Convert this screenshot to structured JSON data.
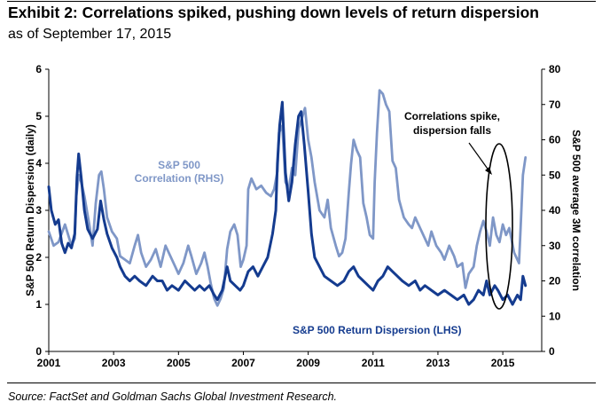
{
  "header": {
    "title": "Exhibit 2: Correlations spiked, pushing down levels of return dispersion",
    "subtitle": "as of September 17, 2015"
  },
  "footer": {
    "source": "Source: FactSet and Goldman Sachs Global Investment Research."
  },
  "chart_data": {
    "type": "line",
    "x_ticks": [
      "2001",
      "2003",
      "2005",
      "2007",
      "2009",
      "2011",
      "2013",
      "2015"
    ],
    "xlim": [
      2001,
      2016.2
    ],
    "y_left": {
      "label": "S&P 500 Return Dispersion (daily)",
      "ticks": [
        0,
        1,
        2,
        3,
        4,
        5,
        6
      ],
      "lim": [
        0,
        6
      ]
    },
    "y_right": {
      "label": "S&P 500 average 3M correlation",
      "ticks": [
        0,
        10,
        20,
        30,
        40,
        50,
        60,
        70,
        80
      ],
      "lim": [
        0,
        80
      ]
    },
    "grid": false,
    "series": [
      {
        "name": "S&P 500 Correlation (RHS)",
        "axis": "right",
        "color": "#7f97c7",
        "points": [
          [
            2001.0,
            34
          ],
          [
            2001.15,
            30
          ],
          [
            2001.3,
            31
          ],
          [
            2001.5,
            36
          ],
          [
            2001.7,
            30
          ],
          [
            2001.8,
            32
          ],
          [
            2001.85,
            44
          ],
          [
            2001.92,
            50
          ],
          [
            2002.0,
            48
          ],
          [
            2002.1,
            44
          ],
          [
            2002.25,
            36
          ],
          [
            2002.35,
            30
          ],
          [
            2002.45,
            42
          ],
          [
            2002.55,
            50
          ],
          [
            2002.62,
            51
          ],
          [
            2002.7,
            46
          ],
          [
            2002.8,
            38
          ],
          [
            2002.95,
            34
          ],
          [
            2003.1,
            32
          ],
          [
            2003.2,
            27
          ],
          [
            2003.35,
            26
          ],
          [
            2003.5,
            25
          ],
          [
            2003.65,
            30
          ],
          [
            2003.75,
            33
          ],
          [
            2003.85,
            28
          ],
          [
            2004.0,
            24
          ],
          [
            2004.15,
            26
          ],
          [
            2004.3,
            29
          ],
          [
            2004.45,
            24
          ],
          [
            2004.6,
            30
          ],
          [
            2004.75,
            27
          ],
          [
            2004.9,
            24
          ],
          [
            2005.0,
            22
          ],
          [
            2005.15,
            25
          ],
          [
            2005.3,
            30
          ],
          [
            2005.4,
            27
          ],
          [
            2005.55,
            22
          ],
          [
            2005.7,
            25
          ],
          [
            2005.8,
            28
          ],
          [
            2005.9,
            24
          ],
          [
            2006.0,
            19
          ],
          [
            2006.1,
            15
          ],
          [
            2006.2,
            13
          ],
          [
            2006.3,
            15
          ],
          [
            2006.4,
            18
          ],
          [
            2006.5,
            29
          ],
          [
            2006.6,
            34
          ],
          [
            2006.72,
            36
          ],
          [
            2006.82,
            33
          ],
          [
            2006.92,
            24
          ],
          [
            2007.0,
            26
          ],
          [
            2007.1,
            30
          ],
          [
            2007.15,
            46
          ],
          [
            2007.25,
            49
          ],
          [
            2007.4,
            46
          ],
          [
            2007.55,
            47
          ],
          [
            2007.7,
            45
          ],
          [
            2007.85,
            44
          ],
          [
            2007.95,
            46
          ],
          [
            2008.05,
            51
          ],
          [
            2008.1,
            62
          ],
          [
            2008.2,
            64
          ],
          [
            2008.3,
            48
          ],
          [
            2008.4,
            46
          ],
          [
            2008.5,
            52
          ],
          [
            2008.6,
            50
          ],
          [
            2008.7,
            63
          ],
          [
            2008.8,
            66
          ],
          [
            2008.9,
            69
          ],
          [
            2009.0,
            60
          ],
          [
            2009.1,
            55
          ],
          [
            2009.2,
            48
          ],
          [
            2009.35,
            40
          ],
          [
            2009.5,
            38
          ],
          [
            2009.6,
            43
          ],
          [
            2009.7,
            35
          ],
          [
            2009.85,
            30
          ],
          [
            2009.95,
            27
          ],
          [
            2010.05,
            28
          ],
          [
            2010.15,
            32
          ],
          [
            2010.25,
            45
          ],
          [
            2010.32,
            53
          ],
          [
            2010.4,
            60
          ],
          [
            2010.5,
            57
          ],
          [
            2010.6,
            55
          ],
          [
            2010.7,
            42
          ],
          [
            2010.8,
            38
          ],
          [
            2010.9,
            33
          ],
          [
            2011.0,
            32
          ],
          [
            2011.05,
            48
          ],
          [
            2011.12,
            62
          ],
          [
            2011.2,
            74
          ],
          [
            2011.3,
            73
          ],
          [
            2011.4,
            70
          ],
          [
            2011.5,
            68
          ],
          [
            2011.6,
            54
          ],
          [
            2011.7,
            52
          ],
          [
            2011.8,
            43
          ],
          [
            2011.95,
            38
          ],
          [
            2012.1,
            36
          ],
          [
            2012.2,
            35
          ],
          [
            2012.3,
            38
          ],
          [
            2012.45,
            35
          ],
          [
            2012.6,
            32
          ],
          [
            2012.7,
            30
          ],
          [
            2012.8,
            34
          ],
          [
            2012.95,
            30
          ],
          [
            2013.1,
            28
          ],
          [
            2013.2,
            26
          ],
          [
            2013.35,
            30
          ],
          [
            2013.5,
            27
          ],
          [
            2013.6,
            24
          ],
          [
            2013.75,
            25
          ],
          [
            2013.85,
            18
          ],
          [
            2013.95,
            22
          ],
          [
            2014.1,
            24
          ],
          [
            2014.2,
            30
          ],
          [
            2014.3,
            34
          ],
          [
            2014.4,
            37
          ],
          [
            2014.5,
            34
          ],
          [
            2014.6,
            30
          ],
          [
            2014.7,
            38
          ],
          [
            2014.8,
            33
          ],
          [
            2014.9,
            31
          ],
          [
            2015.0,
            36
          ],
          [
            2015.1,
            33
          ],
          [
            2015.2,
            35
          ],
          [
            2015.35,
            28
          ],
          [
            2015.5,
            25
          ],
          [
            2015.55,
            35
          ],
          [
            2015.62,
            50
          ],
          [
            2015.7,
            55
          ]
        ]
      },
      {
        "name": "S&P 500 Return Dispersion (LHS)",
        "axis": "left",
        "color": "#143b8f",
        "points": [
          [
            2001.0,
            3.5
          ],
          [
            2001.08,
            3.0
          ],
          [
            2001.2,
            2.7
          ],
          [
            2001.3,
            2.8
          ],
          [
            2001.4,
            2.3
          ],
          [
            2001.5,
            2.1
          ],
          [
            2001.6,
            2.3
          ],
          [
            2001.7,
            2.2
          ],
          [
            2001.8,
            2.5
          ],
          [
            2001.87,
            3.7
          ],
          [
            2001.92,
            4.2
          ],
          [
            2002.0,
            3.7
          ],
          [
            2002.1,
            3.0
          ],
          [
            2002.2,
            2.6
          ],
          [
            2002.35,
            2.4
          ],
          [
            2002.5,
            2.6
          ],
          [
            2002.6,
            3.2
          ],
          [
            2002.7,
            2.8
          ],
          [
            2002.8,
            2.5
          ],
          [
            2002.95,
            2.2
          ],
          [
            2003.1,
            2.0
          ],
          [
            2003.2,
            1.8
          ],
          [
            2003.35,
            1.6
          ],
          [
            2003.5,
            1.5
          ],
          [
            2003.65,
            1.6
          ],
          [
            2003.8,
            1.5
          ],
          [
            2004.0,
            1.4
          ],
          [
            2004.2,
            1.6
          ],
          [
            2004.35,
            1.5
          ],
          [
            2004.5,
            1.5
          ],
          [
            2004.65,
            1.3
          ],
          [
            2004.8,
            1.4
          ],
          [
            2005.0,
            1.3
          ],
          [
            2005.2,
            1.5
          ],
          [
            2005.35,
            1.4
          ],
          [
            2005.5,
            1.3
          ],
          [
            2005.65,
            1.4
          ],
          [
            2005.8,
            1.3
          ],
          [
            2005.95,
            1.4
          ],
          [
            2006.1,
            1.2
          ],
          [
            2006.2,
            1.1
          ],
          [
            2006.35,
            1.3
          ],
          [
            2006.5,
            1.8
          ],
          [
            2006.6,
            1.5
          ],
          [
            2006.75,
            1.4
          ],
          [
            2006.9,
            1.3
          ],
          [
            2007.0,
            1.4
          ],
          [
            2007.15,
            1.7
          ],
          [
            2007.3,
            1.8
          ],
          [
            2007.45,
            1.6
          ],
          [
            2007.6,
            1.8
          ],
          [
            2007.75,
            2.0
          ],
          [
            2007.9,
            2.5
          ],
          [
            2008.0,
            3.0
          ],
          [
            2008.05,
            4.0
          ],
          [
            2008.12,
            4.8
          ],
          [
            2008.2,
            5.3
          ],
          [
            2008.3,
            3.8
          ],
          [
            2008.4,
            3.2
          ],
          [
            2008.5,
            3.6
          ],
          [
            2008.6,
            4.4
          ],
          [
            2008.7,
            5.0
          ],
          [
            2008.78,
            5.1
          ],
          [
            2008.88,
            4.4
          ],
          [
            2009.0,
            3.4
          ],
          [
            2009.1,
            2.5
          ],
          [
            2009.2,
            2.0
          ],
          [
            2009.35,
            1.8
          ],
          [
            2009.5,
            1.6
          ],
          [
            2009.7,
            1.5
          ],
          [
            2009.9,
            1.4
          ],
          [
            2010.1,
            1.5
          ],
          [
            2010.25,
            1.7
          ],
          [
            2010.4,
            1.8
          ],
          [
            2010.55,
            1.6
          ],
          [
            2010.7,
            1.5
          ],
          [
            2010.85,
            1.4
          ],
          [
            2011.0,
            1.3
          ],
          [
            2011.15,
            1.5
          ],
          [
            2011.3,
            1.6
          ],
          [
            2011.45,
            1.8
          ],
          [
            2011.6,
            1.7
          ],
          [
            2011.75,
            1.6
          ],
          [
            2011.9,
            1.5
          ],
          [
            2012.1,
            1.4
          ],
          [
            2012.3,
            1.5
          ],
          [
            2012.45,
            1.3
          ],
          [
            2012.6,
            1.4
          ],
          [
            2012.8,
            1.3
          ],
          [
            2013.0,
            1.2
          ],
          [
            2013.2,
            1.3
          ],
          [
            2013.4,
            1.2
          ],
          [
            2013.6,
            1.1
          ],
          [
            2013.8,
            1.2
          ],
          [
            2013.95,
            1.0
          ],
          [
            2014.1,
            1.1
          ],
          [
            2014.25,
            1.3
          ],
          [
            2014.4,
            1.2
          ],
          [
            2014.5,
            1.5
          ],
          [
            2014.6,
            1.2
          ],
          [
            2014.75,
            1.4
          ],
          [
            2014.85,
            1.3
          ],
          [
            2015.0,
            1.1
          ],
          [
            2015.15,
            1.2
          ],
          [
            2015.3,
            1.0
          ],
          [
            2015.45,
            1.2
          ],
          [
            2015.55,
            1.1
          ],
          [
            2015.62,
            1.6
          ],
          [
            2015.7,
            1.4
          ]
        ]
      }
    ],
    "labels": {
      "corr_series": [
        "S&P 500",
        "Correlation (RHS)"
      ],
      "disp_series": "S&P 500 Return Dispersion (LHS)",
      "annotation": [
        "Correlations spike,",
        "dispersion falls"
      ]
    }
  }
}
